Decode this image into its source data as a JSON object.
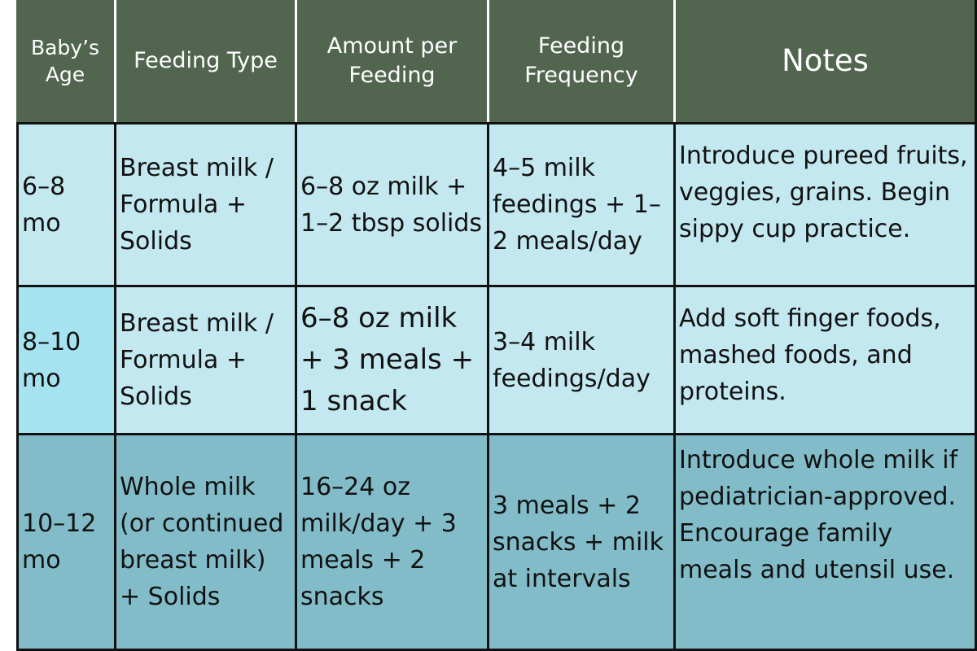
{
  "table": {
    "headers": {
      "age": "Baby’s Age",
      "type": "Feeding Type",
      "amount": "Amount per Feeding",
      "frequency": "Feeding Frequency",
      "notes": "Notes"
    },
    "rows": [
      {
        "age": "6–8 mo",
        "type": "Breast milk / Formula + Solids",
        "amount": "6–8 oz milk + 1–2 tbsp solids",
        "frequency": "4–5 milk feedings + 1–2 meals/day",
        "notes": "Introduce pureed fruits, veggies, grains. Begin sippy cup practice."
      },
      {
        "age": "8–10 mo",
        "type": "Breast milk / Formula + Solids",
        "amount": "6–8 oz milk + 3 meals + 1 snack",
        "frequency": "3–4 milk feedings/day",
        "notes": "Add soft finger foods, mashed foods, and proteins."
      },
      {
        "age": "10–12 mo",
        "type": "Whole milk (or continued breast milk) + Solids",
        "amount": "16–24 oz milk/day + 3 meals + 2 snacks",
        "frequency": "3 meals + 2 snacks + milk at intervals",
        "notes": "Introduce whole milk if pediatrician-approved. Encourage family meals and utensil use."
      }
    ],
    "colors": {
      "header_bg": "#51654f",
      "row1_bg": "#c3e8f0",
      "row2_age_bg": "#a6e3f0",
      "row3_bg": "#82bcc8"
    }
  }
}
